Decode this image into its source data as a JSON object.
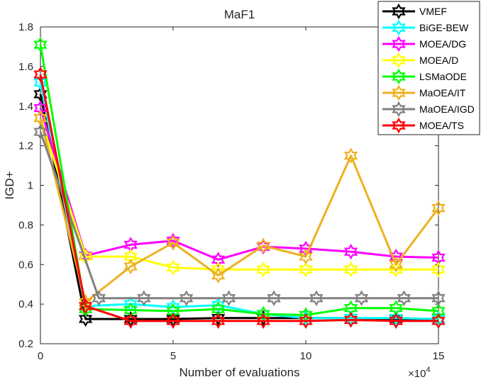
{
  "chart_data": {
    "type": "line",
    "title": "MaF1",
    "xlabel": "Number of evaluations",
    "ylabel": "IGD+",
    "x_exponent_label": "×10",
    "x_exponent_power": "4",
    "xlim": [
      0,
      15
    ],
    "ylim": [
      0.2,
      1.8
    ],
    "xticks": [
      0,
      5,
      10,
      15
    ],
    "xtick_labels": [
      "0",
      "5",
      "10",
      "15"
    ],
    "yticks": [
      0.2,
      0.4,
      0.6,
      0.8,
      1.0,
      1.2,
      1.4,
      1.6,
      1.8
    ],
    "ytick_labels": [
      "0.2",
      "0.4",
      "0.6",
      "0.8",
      "1",
      "1.2",
      "1.4",
      "1.6",
      "1.8"
    ],
    "legend_position": "top-right",
    "marker": "hexagram",
    "series": [
      {
        "name": "VMEF",
        "color": "#000000",
        "x": [
          0,
          1.7,
          3.4,
          5.0,
          6.7,
          8.4,
          10.0,
          11.7,
          13.4,
          15.0
        ],
        "y": [
          1.46,
          0.325,
          0.325,
          0.325,
          0.33,
          0.33,
          0.33,
          0.33,
          0.325,
          0.325
        ]
      },
      {
        "name": "BiGE-BEW",
        "color": "#00FFFF",
        "x": [
          0,
          1.7,
          3.4,
          5.0,
          6.7,
          8.4,
          10.0,
          11.7,
          13.4,
          15.0
        ],
        "y": [
          1.52,
          0.39,
          0.4,
          0.385,
          0.395,
          0.35,
          0.33,
          0.33,
          0.33,
          0.325
        ]
      },
      {
        "name": "MOEA/DG",
        "color": "#FF00FF",
        "x": [
          0,
          1.7,
          3.4,
          5.0,
          6.7,
          8.4,
          10.0,
          11.7,
          13.4,
          15.0
        ],
        "y": [
          1.39,
          0.645,
          0.7,
          0.72,
          0.625,
          0.69,
          0.68,
          0.665,
          0.64,
          0.635
        ]
      },
      {
        "name": "MOEA/D",
        "color": "#FFFF00",
        "x": [
          0,
          1.7,
          3.4,
          5.0,
          6.7,
          8.4,
          10.0,
          11.7,
          13.4,
          15.0
        ],
        "y": [
          1.34,
          0.64,
          0.64,
          0.585,
          0.575,
          0.575,
          0.575,
          0.575,
          0.575,
          0.575
        ]
      },
      {
        "name": "LSMaODE",
        "color": "#00FF00",
        "x": [
          0,
          1.7,
          3.4,
          5.0,
          6.7,
          8.4,
          10.0,
          11.7,
          13.4,
          15.0
        ],
        "y": [
          1.71,
          0.375,
          0.37,
          0.365,
          0.375,
          0.35,
          0.345,
          0.38,
          0.38,
          0.365
        ]
      },
      {
        "name": "MaOEA/IT",
        "color": "#EDB120",
        "x": [
          0,
          1.7,
          3.4,
          5.0,
          6.7,
          8.4,
          10.0,
          11.7,
          13.4,
          15.0
        ],
        "y": [
          1.34,
          0.41,
          0.59,
          0.71,
          0.545,
          0.695,
          0.64,
          1.15,
          0.6,
          0.885
        ]
      },
      {
        "name": "MaOEA/IGD",
        "color": "#808080",
        "x": [
          0,
          2.2,
          3.9,
          5.5,
          7.1,
          8.8,
          10.4,
          12.1,
          13.7,
          15.0
        ],
        "y": [
          1.27,
          0.43,
          0.43,
          0.43,
          0.43,
          0.43,
          0.43,
          0.43,
          0.43,
          0.43
        ]
      },
      {
        "name": "MOEA/TS",
        "color": "#FF0000",
        "x": [
          0,
          1.7,
          3.4,
          5.0,
          6.7,
          8.4,
          10.0,
          11.7,
          13.4,
          15.0
        ],
        "y": [
          1.56,
          0.39,
          0.315,
          0.315,
          0.315,
          0.315,
          0.315,
          0.32,
          0.315,
          0.315
        ]
      }
    ]
  }
}
